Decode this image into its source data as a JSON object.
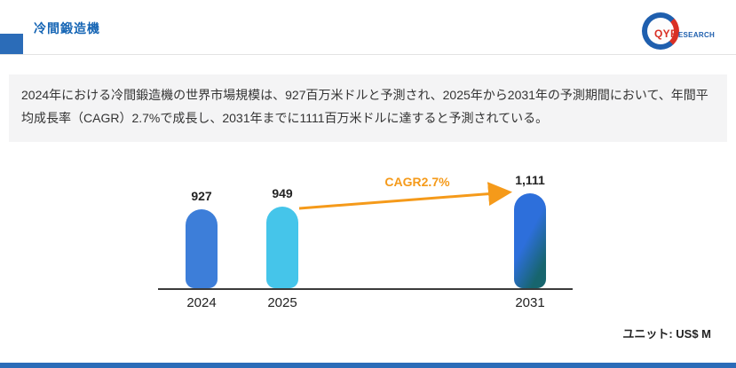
{
  "header": {
    "title": "冷間鍛造機",
    "logo": {
      "brand_primary": "QYR",
      "brand_secondary": "ESEARCH"
    }
  },
  "summary": {
    "text": "2024年における冷間鍛造機の世界市場規模は、927百万米ドルと予測され、2025年から2031年の予測期間において、年間平均成長率（CAGR）2.7%で成長し、2031年までに1111百万米ドルに達すると予測されている。"
  },
  "chart_data": {
    "type": "bar",
    "title": "",
    "categories": [
      "2024",
      "2025",
      "2031"
    ],
    "values": [
      927,
      949,
      1111
    ],
    "value_labels": [
      "927",
      "949",
      "1,111"
    ],
    "annotation": "CAGR2.7%",
    "unit_label": "ユニット: US$ M",
    "ylim": [
      0,
      1200
    ],
    "grid": false,
    "legend": false,
    "bar_colors": [
      "#3d7ed9",
      "#45c5ea",
      "linear-gradient(118deg, #2d6fdb 45%, #17656e 82%)"
    ],
    "arrow_color": "#f59a1a",
    "axis_color": "#3a3a3a",
    "accent_color": "#2b6cb8"
  }
}
